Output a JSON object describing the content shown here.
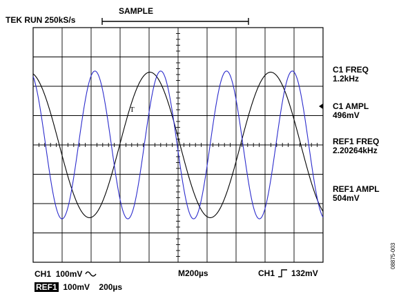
{
  "header": {
    "status": "TEK RUN 250kS/s",
    "acquisition_mode": "SAMPLE"
  },
  "measurements": [
    {
      "label": "C1 FREQ",
      "value": "1.2kHz"
    },
    {
      "label": "C1 AMPL",
      "value": "496mV"
    },
    {
      "label": "REF1 FREQ",
      "value": "2.20264kHz"
    },
    {
      "label": "REF1 AMPL",
      "value": "504mV"
    }
  ],
  "footer": {
    "ch1_label": "CH1",
    "ch1_scale": "100mV",
    "ch1_coupling_icon": "ac-coupling-icon",
    "timebase": "M200µs",
    "trigger_source": "CH1",
    "trigger_icon": "rising-edge-icon",
    "trigger_level": "132mV",
    "ref_label": "REF1",
    "ref_scale": "100mV",
    "ref_time": "200µs"
  },
  "figure_id": "08875-003",
  "trigger_marker": "T",
  "colors": {
    "ch1_trace": "#000000",
    "ref1_trace": "#2a2acc",
    "grid": "#000000"
  },
  "chart_data": {
    "type": "line",
    "title": "",
    "xlabel": "",
    "ylabel": "",
    "x_divisions": 10,
    "y_divisions": 8,
    "xlim_us": [
      0,
      2000
    ],
    "ylim_mV": [
      -400,
      400
    ],
    "grid": true,
    "series": [
      {
        "name": "CH1",
        "frequency_hz": 1200,
        "amplitude_mV": 248,
        "phase_deg": 102,
        "color": "#000000"
      },
      {
        "name": "REF1",
        "frequency_hz": 2202.64,
        "amplitude_mV": 252,
        "phase_deg": 112,
        "color": "#2a2acc"
      }
    ]
  }
}
